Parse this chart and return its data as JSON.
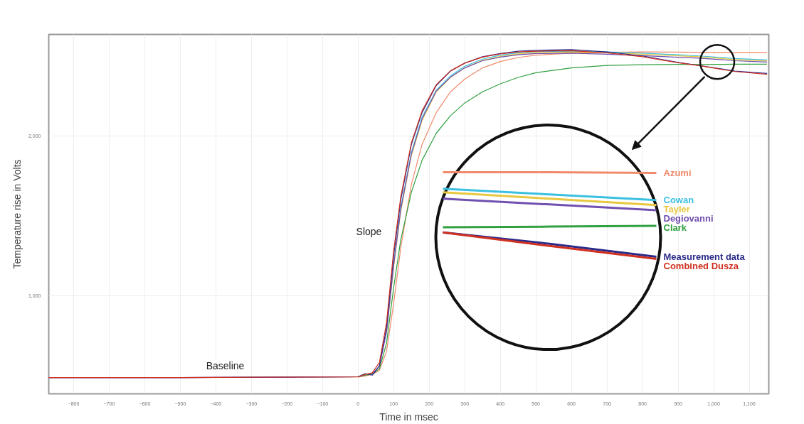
{
  "chart_data": {
    "type": "line",
    "xlabel": "Time in msec",
    "ylabel": "Temperature rise in Volts",
    "xlim": [
      -870,
      1155
    ],
    "ylim": [
      383,
      2640
    ],
    "xticks": [
      -800,
      -700,
      -600,
      -500,
      -400,
      -300,
      -200,
      -100,
      0,
      100,
      200,
      300,
      400,
      500,
      600,
      700,
      800,
      900,
      {
        "value": 1000,
        "label": "1,000"
      },
      {
        "value": 1100,
        "label": "1,100"
      }
    ],
    "yticks": [
      {
        "value": 1000,
        "label": "1,000"
      },
      {
        "value": 2000,
        "label": "2,000"
      }
    ],
    "grid": true,
    "marker": "none",
    "line_style": "solid",
    "x": [
      -870,
      -500,
      0,
      20,
      40,
      60,
      80,
      100,
      120,
      150,
      180,
      220,
      260,
      300,
      350,
      400,
      450,
      500,
      600,
      700,
      800,
      900,
      960,
      1010,
      1060,
      1150
    ],
    "series": [
      {
        "name": "Azumi",
        "color": "#f08a6a",
        "values": [
          485,
          485,
          488,
          495,
          505,
          530,
          650,
          950,
          1300,
          1700,
          1950,
          2150,
          2280,
          2360,
          2430,
          2470,
          2495,
          2510,
          2522,
          2528,
          2530,
          2529,
          2528,
          2528,
          2527,
          2527
        ]
      },
      {
        "name": "Cowan",
        "color": "#3cc0e0",
        "values": [
          null,
          null,
          null,
          null,
          null,
          null,
          780,
          1200,
          1550,
          1900,
          2120,
          2290,
          2380,
          2440,
          2485,
          2510,
          2525,
          2532,
          2535,
          2530,
          2522,
          2512,
          2505,
          2497,
          2489,
          2480
        ]
      },
      {
        "name": "Tayler",
        "color": "#e8c840",
        "values": [
          null,
          null,
          null,
          null,
          null,
          null,
          770,
          1180,
          1530,
          1880,
          2100,
          2280,
          2370,
          2430,
          2478,
          2502,
          2518,
          2526,
          2530,
          2525,
          2516,
          2506,
          2500,
          2491,
          2482,
          2473
        ]
      },
      {
        "name": "Degiovanni",
        "color": "#7050b0",
        "values": [
          485,
          485,
          490,
          500,
          510,
          555,
          770,
          1190,
          1540,
          1890,
          2110,
          2285,
          2372,
          2430,
          2475,
          2498,
          2512,
          2520,
          2522,
          2516,
          2507,
          2497,
          2491,
          2483,
          2475,
          2467
        ]
      },
      {
        "name": "Clark",
        "color": "#30a040",
        "values": [
          null,
          null,
          490,
          500,
          505,
          540,
          700,
          1050,
          1350,
          1650,
          1850,
          2020,
          2130,
          2210,
          2280,
          2330,
          2370,
          2400,
          2430,
          2445,
          2450,
          2452,
          2451,
          2452,
          2453,
          2453
        ]
      },
      {
        "name": "Measurement data",
        "color": "#2a2a8a",
        "values": [
          485,
          485,
          490,
          510,
          500,
          560,
          800,
          1250,
          1600,
          1950,
          2150,
          2320,
          2410,
          2460,
          2500,
          2520,
          2535,
          2540,
          2545,
          2530,
          2505,
          2465,
          2444,
          2428,
          2410,
          2395
        ]
      },
      {
        "name": "Combined Dusza",
        "color": "#d03020",
        "values": [
          485,
          485,
          490,
          505,
          515,
          580,
          830,
          1280,
          1620,
          1960,
          2160,
          2325,
          2412,
          2460,
          2498,
          2518,
          2530,
          2535,
          2538,
          2524,
          2500,
          2462,
          2444,
          2425,
          2407,
          2390
        ]
      }
    ],
    "annotations": [
      "Baseline",
      "Slope"
    ]
  }
}
